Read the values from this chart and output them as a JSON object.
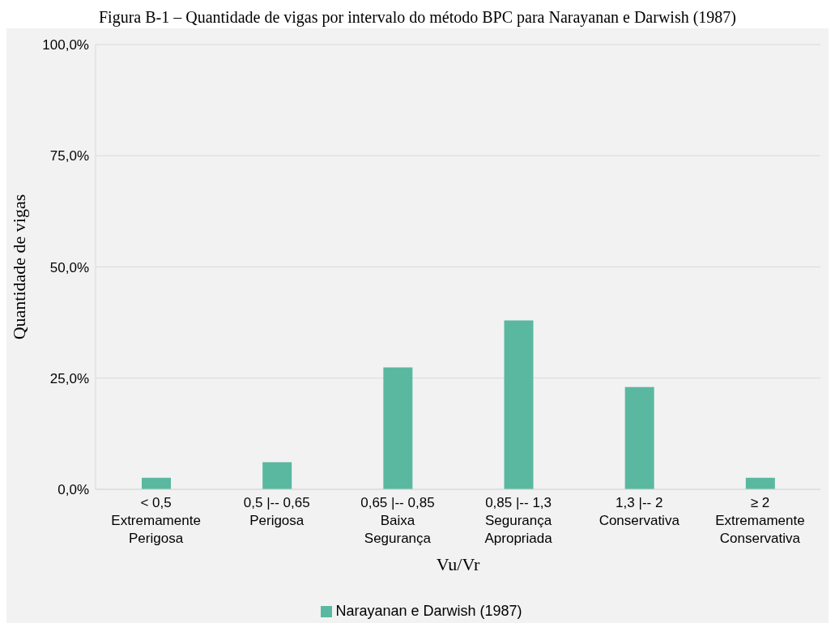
{
  "chart_data": {
    "type": "bar",
    "title": "Figura B-1 – Quantidade de vigas por intervalo do método BPC para Narayanan e Darwish (1987)",
    "xlabel": "Vu/Vr",
    "ylabel": "Quantidade de vigas",
    "categories": [
      "< 0,5\nExtremamente\nPerigosa",
      "0,5 |-- 0,65\nPerigosa",
      "0,65 |-- 0,85\nBaixa\nSegurança",
      "0,85 |-- 1,3\nSegurança\nApropriada",
      "1,3 |-- 2\nConservativa",
      "≥ 2\nExtremamente\nConservativa"
    ],
    "series": [
      {
        "name": "Narayanan e Darwish (1987)",
        "color": "#5ab8a0",
        "values": [
          2.6,
          6.1,
          27.4,
          38.0,
          23.0,
          2.6
        ]
      }
    ],
    "ylim": [
      0,
      100
    ],
    "yticks": [
      {
        "value": 0,
        "label": "0,0%"
      },
      {
        "value": 25,
        "label": "25,0%"
      },
      {
        "value": 50,
        "label": "50,0%"
      },
      {
        "value": 75,
        "label": "75,0%"
      },
      {
        "value": 100,
        "label": "100,0%"
      }
    ],
    "grid": "y",
    "legend": "bottom"
  }
}
